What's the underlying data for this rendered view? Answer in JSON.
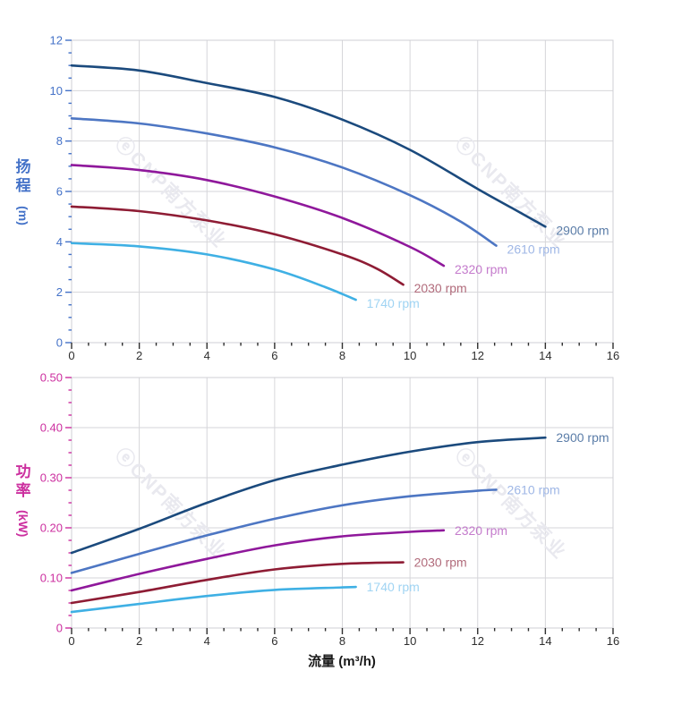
{
  "watermark": {
    "text": "ⓔCNP南方泵业",
    "color": "#e9e9ef"
  },
  "grid_color": "#d6d6da",
  "border_color": "#cfcfd4",
  "x_tick_color": "#2e2e2e",
  "x_title_color": "#1a1a1a",
  "chart_data": [
    {
      "type": "line",
      "title": "",
      "ylabel": "扬程",
      "y_unit": "(m)",
      "xlabel": "",
      "axis_text_color": "#4472c8",
      "x_range": [
        0,
        16
      ],
      "y_range": [
        0,
        12
      ],
      "x_major": 2,
      "x_minor": 0.5,
      "y_major": 2,
      "y_minor": 0.5,
      "x_tick_labels": [
        "0",
        "2",
        "4",
        "6",
        "8",
        "10",
        "12",
        "14",
        "16"
      ],
      "y_tick_labels": [
        "0",
        "2",
        "4",
        "6",
        "8",
        "10",
        "12"
      ],
      "grid": true,
      "legend_position": "end-of-line",
      "series": [
        {
          "name": "2900 rpm",
          "color": "#1b4a7d",
          "label_color": "#5b7da8",
          "points": [
            [
              0,
              11.0
            ],
            [
              2,
              10.8
            ],
            [
              4,
              10.3
            ],
            [
              6,
              9.75
            ],
            [
              8,
              8.85
            ],
            [
              10,
              7.65
            ],
            [
              12,
              6.1
            ],
            [
              13,
              5.35
            ],
            [
              14,
              4.6
            ]
          ]
        },
        {
          "name": "2610 rpm",
          "color": "#4d76c3",
          "label_color": "#9fb7e6",
          "points": [
            [
              0,
              8.9
            ],
            [
              2,
              8.7
            ],
            [
              4,
              8.3
            ],
            [
              6,
              7.75
            ],
            [
              8,
              6.95
            ],
            [
              10,
              5.85
            ],
            [
              11.5,
              4.8
            ],
            [
              12.55,
              3.85
            ]
          ]
        },
        {
          "name": "2320 rpm",
          "color": "#8f189b",
          "label_color": "#c47bcc",
          "points": [
            [
              0,
              7.05
            ],
            [
              2,
              6.85
            ],
            [
              4,
              6.45
            ],
            [
              6,
              5.8
            ],
            [
              8,
              4.95
            ],
            [
              10,
              3.8
            ],
            [
              11,
              3.05
            ]
          ]
        },
        {
          "name": "2030 rpm",
          "color": "#8e1c34",
          "label_color": "#b16b7b",
          "points": [
            [
              0,
              5.4
            ],
            [
              2,
              5.22
            ],
            [
              4,
              4.85
            ],
            [
              6,
              4.3
            ],
            [
              8,
              3.5
            ],
            [
              9,
              2.95
            ],
            [
              9.8,
              2.3
            ]
          ]
        },
        {
          "name": "1740 rpm",
          "color": "#3fb0e4",
          "label_color": "#a0d4f3",
          "points": [
            [
              0,
              3.95
            ],
            [
              2,
              3.82
            ],
            [
              4,
              3.5
            ],
            [
              6,
              2.9
            ],
            [
              7.5,
              2.2
            ],
            [
              8.4,
              1.7
            ]
          ]
        }
      ]
    },
    {
      "type": "line",
      "title": "",
      "ylabel": "功率",
      "y_unit": "(kW)",
      "xlabel": "流量 (m³/h)",
      "axis_text_color": "#cc2f9f",
      "x_range": [
        0,
        16
      ],
      "y_range": [
        0,
        0.5
      ],
      "x_major": 2,
      "x_minor": 0.5,
      "y_major": 0.1,
      "y_minor": 0.025,
      "x_tick_labels": [
        "0",
        "2",
        "4",
        "6",
        "8",
        "10",
        "12",
        "14",
        "16"
      ],
      "y_tick_labels": [
        "0",
        "0.10",
        "0.20",
        "0.30",
        "0.40",
        "0.50"
      ],
      "grid": true,
      "legend_position": "end-of-line",
      "series": [
        {
          "name": "2900 rpm",
          "color": "#1b4a7d",
          "label_color": "#5b7da8",
          "points": [
            [
              0,
              0.15
            ],
            [
              2,
              0.198
            ],
            [
              4,
              0.25
            ],
            [
              6,
              0.295
            ],
            [
              8,
              0.326
            ],
            [
              10,
              0.352
            ],
            [
              12,
              0.371
            ],
            [
              14,
              0.38
            ]
          ]
        },
        {
          "name": "2610 rpm",
          "color": "#4d76c3",
          "label_color": "#9fb7e6",
          "points": [
            [
              0,
              0.11
            ],
            [
              2,
              0.148
            ],
            [
              4,
              0.185
            ],
            [
              6,
              0.218
            ],
            [
              8,
              0.245
            ],
            [
              10,
              0.263
            ],
            [
              12,
              0.274
            ],
            [
              12.55,
              0.276
            ]
          ]
        },
        {
          "name": "2320 rpm",
          "color": "#8f189b",
          "label_color": "#c47bcc",
          "points": [
            [
              0,
              0.075
            ],
            [
              2,
              0.108
            ],
            [
              4,
              0.138
            ],
            [
              6,
              0.165
            ],
            [
              8,
              0.183
            ],
            [
              10,
              0.192
            ],
            [
              11,
              0.195
            ]
          ]
        },
        {
          "name": "2030 rpm",
          "color": "#8e1c34",
          "label_color": "#b16b7b",
          "points": [
            [
              0,
              0.05
            ],
            [
              2,
              0.072
            ],
            [
              4,
              0.096
            ],
            [
              6,
              0.117
            ],
            [
              8,
              0.128
            ],
            [
              9.8,
              0.131
            ]
          ]
        },
        {
          "name": "1740 rpm",
          "color": "#3fb0e4",
          "label_color": "#a0d4f3",
          "points": [
            [
              0,
              0.032
            ],
            [
              2,
              0.048
            ],
            [
              4,
              0.064
            ],
            [
              6,
              0.076
            ],
            [
              8,
              0.081
            ],
            [
              8.4,
              0.082
            ]
          ]
        }
      ]
    }
  ]
}
